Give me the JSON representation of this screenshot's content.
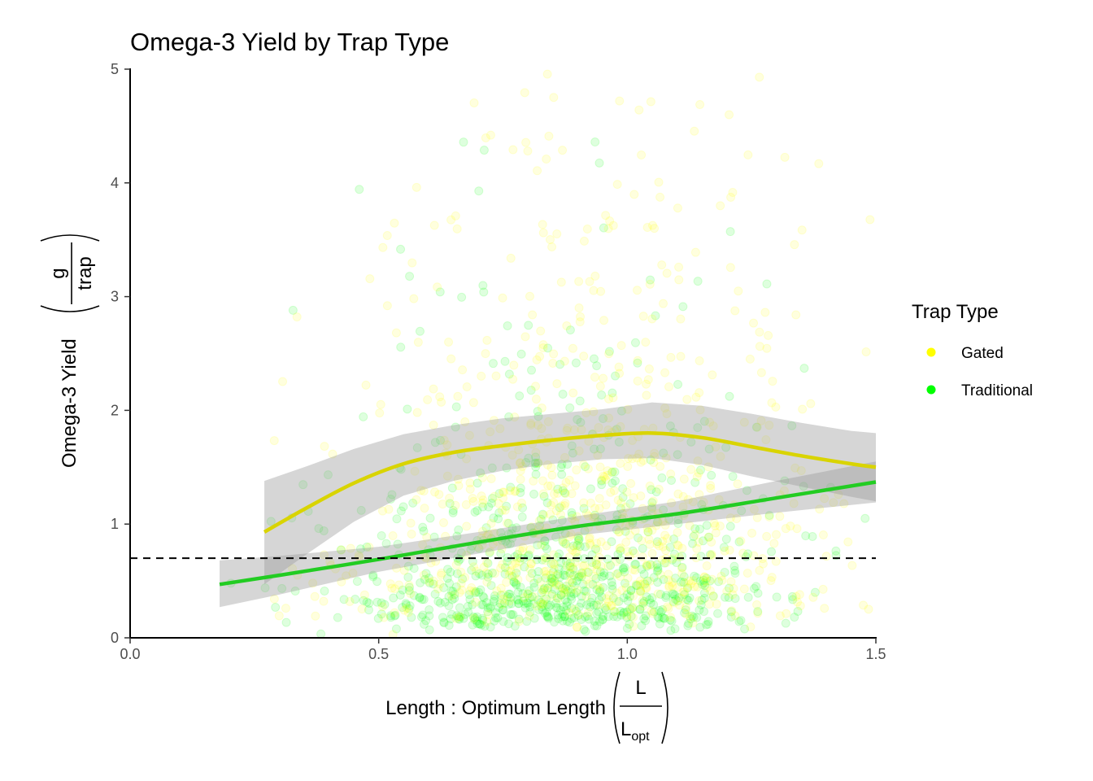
{
  "chart_data": {
    "type": "scatter",
    "title": "Omega-3 Yield by Trap Type",
    "xlabel": {
      "text": "Length : Optimum Length",
      "fraction_numerator": "L",
      "fraction_denominator": "L",
      "denominator_subscript": "opt"
    },
    "ylabel": {
      "text": "Omega-3 Yield",
      "fraction_numerator": "g",
      "fraction_denominator": "trap"
    },
    "xlim": [
      0,
      1.5
    ],
    "ylim": [
      0,
      5
    ],
    "x_ticks": [
      "0.0",
      "0.5",
      "1.0",
      "1.5"
    ],
    "y_ticks": [
      "0",
      "1",
      "2",
      "3",
      "4",
      "5"
    ],
    "grid": false,
    "legend": {
      "title": "Trap Type",
      "position": "right",
      "entries": [
        "Gated",
        "Traditional"
      ]
    },
    "reference_line": {
      "y": 0.7,
      "style": "dashed",
      "color": "#000000"
    },
    "series": [
      {
        "name": "Gated",
        "color": "#FFFF00",
        "line_color": "#D9D400",
        "smooth": {
          "x": [
            0.27,
            0.35,
            0.45,
            0.55,
            0.65,
            0.75,
            0.85,
            0.95,
            1.05,
            1.15,
            1.25,
            1.35,
            1.45,
            1.5
          ],
          "y": [
            0.93,
            1.13,
            1.36,
            1.53,
            1.63,
            1.69,
            1.74,
            1.78,
            1.8,
            1.76,
            1.68,
            1.6,
            1.53,
            1.5
          ],
          "ci_lower": [
            0.47,
            0.72,
            1.02,
            1.25,
            1.38,
            1.47,
            1.53,
            1.57,
            1.58,
            1.52,
            1.42,
            1.33,
            1.24,
            1.2
          ],
          "ci_upper": [
            1.38,
            1.5,
            1.66,
            1.79,
            1.87,
            1.93,
            1.97,
            2.01,
            2.07,
            2.04,
            1.97,
            1.89,
            1.82,
            1.8
          ]
        },
        "points_summary": {
          "n_approx": 800,
          "x_range": [
            0.27,
            1.5
          ],
          "y_range": [
            0,
            5
          ],
          "x_center": 0.9,
          "y_center": 1.3
        }
      },
      {
        "name": "Traditional",
        "color": "#00FF00",
        "line_color": "#22CC22",
        "smooth": {
          "x": [
            0.18,
            0.3,
            0.5,
            0.7,
            0.9,
            1.1,
            1.3,
            1.5
          ],
          "y": [
            0.47,
            0.55,
            0.69,
            0.84,
            0.98,
            1.09,
            1.23,
            1.37
          ],
          "ci_lower": [
            0.27,
            0.38,
            0.58,
            0.74,
            0.9,
            1.0,
            1.1,
            1.19
          ],
          "ci_upper": [
            0.68,
            0.72,
            0.8,
            0.93,
            1.07,
            1.2,
            1.38,
            1.55
          ]
        },
        "points_summary": {
          "n_approx": 800,
          "x_range": [
            0.18,
            1.5
          ],
          "y_range": [
            0,
            4.7
          ],
          "x_center": 0.85,
          "y_center": 0.7
        }
      }
    ]
  }
}
